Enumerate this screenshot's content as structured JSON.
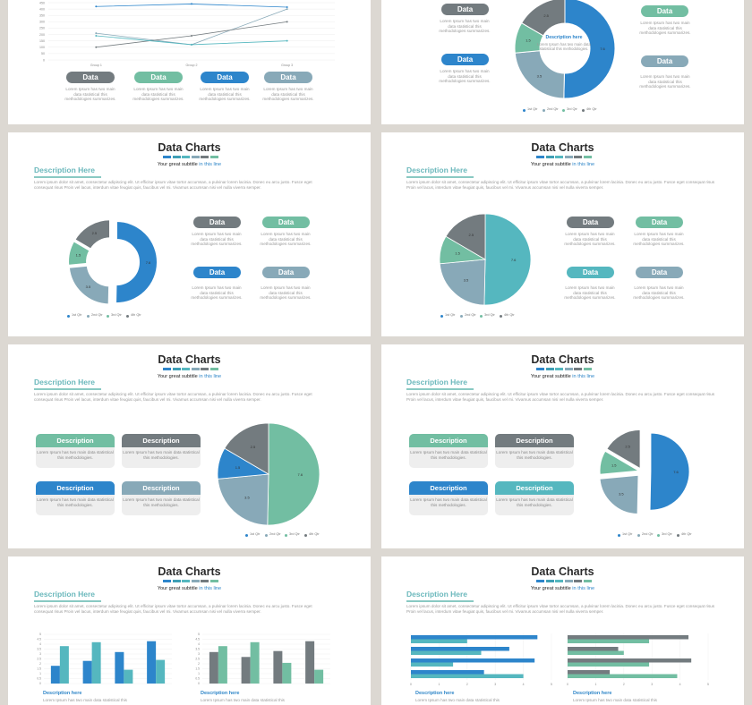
{
  "slide_common": {
    "title": "Data Charts",
    "subtitle": "Your great subtitle",
    "subtitle_accent": "in this line",
    "desc_heading": "Description Here",
    "body_text": "Lorem ipsum dolor sit amet, consectetur adipiscing elit. Ut efficitur ipsum vitae tortor accumsan, a pulvinar lorem lacinia. Donec eu arcu justo. Fusce eget consequat risus Proin vel lacus, interdum vitae feugiat quis, faucibus vel mi. Vivamus accumsan nisi vel nulla viverra semper."
  },
  "labels": {
    "pill": "Data",
    "pill_text": "Lorem Ipsum has two main data statistical this methodologies summarizes.",
    "card_heading": "Description",
    "card_text": "Lorem Ipsum has two main data statistical this methodologies.",
    "desc_here": "Description here",
    "desc_here_body": "Lorem Ipsum has two main data statistical this",
    "donut_center_title": "Description here",
    "donut_center_body": "Lorem Ipsum has two main data statistical this methodologies."
  },
  "colors": {
    "gray": "#737b7f",
    "green": "#72bea2",
    "blue": "#2d85cb",
    "steel": "#88a9b8",
    "teal": "#55b7bf"
  },
  "legend": [
    "1st Qtr",
    "2nd Qtr",
    "3rd Qtr",
    "4th Qtr"
  ],
  "chart_data": [
    {
      "type": "line",
      "categories": [
        "Group 1",
        "Group 2",
        "Group 3"
      ],
      "ylim": [
        0,
        450
      ],
      "yticks": [
        "0",
        "50",
        "100",
        "150",
        "200",
        "250",
        "300",
        "350",
        "400",
        "450"
      ],
      "series": [
        {
          "values": [
            210,
            120,
            400
          ]
        },
        {
          "values": [
            100,
            190,
            300
          ]
        },
        {
          "values": [
            190,
            120,
            150
          ]
        },
        {
          "values": [
            420,
            440,
            415
          ]
        }
      ]
    },
    {
      "type": "pie",
      "categories": [
        "1st Qtr",
        "2nd Qtr",
        "3rd Qtr",
        "4th Qtr"
      ],
      "values": [
        7.6,
        3.5,
        1.5,
        2.5
      ]
    },
    {
      "type": "pie",
      "categories": [
        "1st Qtr",
        "2nd Qtr",
        "3rd Qtr",
        "4th Qtr"
      ],
      "values": [
        7.6,
        3.5,
        1.5,
        2.5
      ]
    },
    {
      "type": "pie",
      "categories": [
        "1st Qtr",
        "2nd Qtr",
        "3rd Qtr",
        "4th Qtr"
      ],
      "values": [
        7.6,
        3.5,
        1.5,
        2.5
      ]
    },
    {
      "type": "pie",
      "categories": [
        "1st Qtr",
        "2nd Qtr",
        "3rd Qtr",
        "4th Qtr"
      ],
      "values": [
        7.6,
        3.5,
        1.5,
        2.5
      ]
    },
    {
      "type": "pie",
      "categories": [
        "1st Qtr",
        "2nd Qtr",
        "3rd Qtr",
        "4th Qtr"
      ],
      "values": [
        7.6,
        3.5,
        1.5,
        2.5
      ]
    },
    {
      "type": "bar",
      "categories": [
        "1",
        "2",
        "3",
        "4"
      ],
      "ylim": [
        0,
        5
      ],
      "yticks": [
        "0",
        "0.5",
        "1",
        "1.5",
        "2",
        "2.5",
        "3",
        "3.5",
        "4",
        "4.5",
        "5"
      ],
      "series": [
        {
          "values": [
            1.8,
            2.3,
            3.2,
            4.3
          ]
        },
        {
          "values": [
            3.8,
            4.2,
            1.4,
            2.4
          ]
        }
      ]
    },
    {
      "type": "bar",
      "categories": [
        "1",
        "2",
        "3",
        "4"
      ],
      "ylim": [
        0,
        5
      ],
      "yticks": [
        "0",
        "0.5",
        "1",
        "1.5",
        "2",
        "2.5",
        "3",
        "3.5",
        "4",
        "4.5",
        "5"
      ],
      "series": [
        {
          "values": [
            3.2,
            2.7,
            3.3,
            4.3
          ]
        },
        {
          "values": [
            3.8,
            4.2,
            2.1,
            1.4
          ]
        }
      ]
    },
    {
      "type": "bar",
      "orientation": "horizontal",
      "categories": [
        "1",
        "2",
        "3",
        "4"
      ],
      "xlim": [
        0,
        5
      ],
      "xticks": [
        "0",
        "1",
        "2",
        "3",
        "4",
        "5"
      ],
      "series": [
        {
          "values": [
            4.5,
            3.5,
            4.4,
            2.6
          ]
        },
        {
          "values": [
            2.0,
            2.5,
            1.5,
            4.0
          ]
        }
      ]
    },
    {
      "type": "bar",
      "orientation": "horizontal",
      "categories": [
        "1",
        "2",
        "3",
        "4"
      ],
      "xlim": [
        0,
        5
      ],
      "xticks": [
        "0",
        "1",
        "2",
        "3",
        "4",
        "5"
      ],
      "series": [
        {
          "values": [
            4.3,
            1.8,
            4.4,
            1.5
          ]
        },
        {
          "values": [
            2.9,
            2.0,
            2.9,
            3.9
          ]
        }
      ]
    }
  ]
}
